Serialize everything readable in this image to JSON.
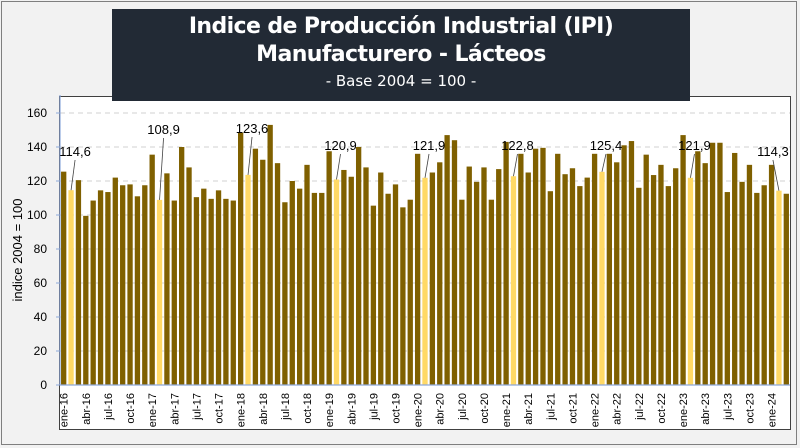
{
  "chart_data": {
    "type": "bar",
    "title": "Indice de Producción Industrial (IPI) Manufacturero - Lácteos",
    "subtitle": "- Base 2004 = 100 -",
    "xlabel": "",
    "ylabel": "indice 2004 = 100",
    "ylim": [
      0,
      160
    ],
    "yticks": [
      0,
      20,
      40,
      60,
      80,
      100,
      120,
      140,
      160
    ],
    "grid": "horizontal-dashed",
    "legend": "none",
    "start_month": "ene-16",
    "x": [
      "ene-16",
      "feb-16",
      "mar-16",
      "abr-16",
      "may-16",
      "jun-16",
      "jul-16",
      "ago-16",
      "sep-16",
      "oct-16",
      "nov-16",
      "dic-16",
      "ene-17",
      "feb-17",
      "mar-17",
      "abr-17",
      "may-17",
      "jun-17",
      "jul-17",
      "ago-17",
      "sep-17",
      "oct-17",
      "nov-17",
      "dic-17",
      "ene-18",
      "feb-18",
      "mar-18",
      "abr-18",
      "may-18",
      "jun-18",
      "jul-18",
      "ago-18",
      "sep-18",
      "oct-18",
      "nov-18",
      "dic-18",
      "ene-19",
      "feb-19",
      "mar-19",
      "abr-19",
      "may-19",
      "jun-19",
      "jul-19",
      "ago-19",
      "sep-19",
      "oct-19",
      "nov-19",
      "dic-19",
      "ene-20",
      "feb-20",
      "mar-20",
      "abr-20",
      "may-20",
      "jun-20",
      "jul-20",
      "ago-20",
      "sep-20",
      "oct-20",
      "nov-20",
      "dic-20",
      "ene-21",
      "feb-21",
      "mar-21",
      "abr-21",
      "may-21",
      "jun-21",
      "jul-21",
      "ago-21",
      "sep-21",
      "oct-21",
      "nov-21",
      "dic-21",
      "ene-22",
      "feb-22",
      "mar-22",
      "abr-22",
      "may-22",
      "jun-22",
      "jul-22",
      "ago-22",
      "sep-22",
      "oct-22",
      "nov-22",
      "dic-22",
      "ene-23",
      "feb-23",
      "mar-23",
      "abr-23",
      "may-23",
      "jun-23",
      "jul-23",
      "ago-23",
      "sep-23",
      "oct-23",
      "nov-23",
      "dic-23",
      "ene-24",
      "feb-24",
      "mar-24"
    ],
    "tick_labels": [
      "ene-16",
      "abr-16",
      "jul-16",
      "oct-16",
      "ene-17",
      "abr-17",
      "jul-17",
      "oct-17",
      "ene-18",
      "abr-18",
      "jul-18",
      "oct-18",
      "ene-19",
      "abr-19",
      "jul-19",
      "oct-19",
      "ene-20",
      "abr-20",
      "jul-20",
      "oct-20",
      "ene-21",
      "abr-21",
      "jul-21",
      "oct-21",
      "ene-22",
      "abr-22",
      "jul-22",
      "oct-22",
      "ene-23",
      "abr-23",
      "jul-23",
      "oct-23",
      "ene-24"
    ],
    "values": [
      125.5,
      114.6,
      120.5,
      99.5,
      108.5,
      114.5,
      113.5,
      122,
      117.5,
      118,
      111,
      117.5,
      135.5,
      108.9,
      124.5,
      108.5,
      140,
      128,
      110.5,
      115.5,
      109.5,
      114.5,
      109.5,
      108.5,
      148.5,
      123.6,
      139,
      132.5,
      153,
      130.5,
      107.5,
      120,
      115.5,
      129.5,
      113,
      113,
      137.5,
      120.9,
      126.5,
      122.5,
      140,
      128,
      105.5,
      125,
      112.5,
      118,
      104.5,
      109,
      136,
      121.9,
      125,
      131,
      147,
      144,
      109,
      128.5,
      119.5,
      128,
      109,
      127,
      143,
      122.8,
      136,
      125,
      139,
      139.5,
      114,
      136,
      124,
      127.5,
      117,
      122,
      136,
      125.4,
      136,
      131,
      141,
      143.5,
      116,
      135.5,
      123.5,
      129.5,
      117,
      127.5,
      147,
      121.9,
      137.5,
      130.5,
      142.5,
      142.5,
      113.5,
      136.5,
      119.5,
      129.5,
      113,
      117.5,
      129.5,
      114.3,
      112.5
    ],
    "highlight_color": "#ffd966",
    "bar_color": "#7f6000",
    "highlighted_months": [
      "feb-16",
      "feb-17",
      "feb-18",
      "feb-19",
      "feb-20",
      "feb-21",
      "feb-22",
      "feb-23",
      "feb-24"
    ],
    "annotations": [
      {
        "month": "feb-16",
        "label": "114,6"
      },
      {
        "month": "feb-17",
        "label": "108,9"
      },
      {
        "month": "feb-18",
        "label": "123,6"
      },
      {
        "month": "feb-19",
        "label": "120,9"
      },
      {
        "month": "feb-20",
        "label": "121,9"
      },
      {
        "month": "feb-21",
        "label": "122,8"
      },
      {
        "month": "feb-22",
        "label": "125,4"
      },
      {
        "month": "feb-23",
        "label": "121,9"
      },
      {
        "month": "feb-24",
        "label": "114,3"
      }
    ]
  }
}
